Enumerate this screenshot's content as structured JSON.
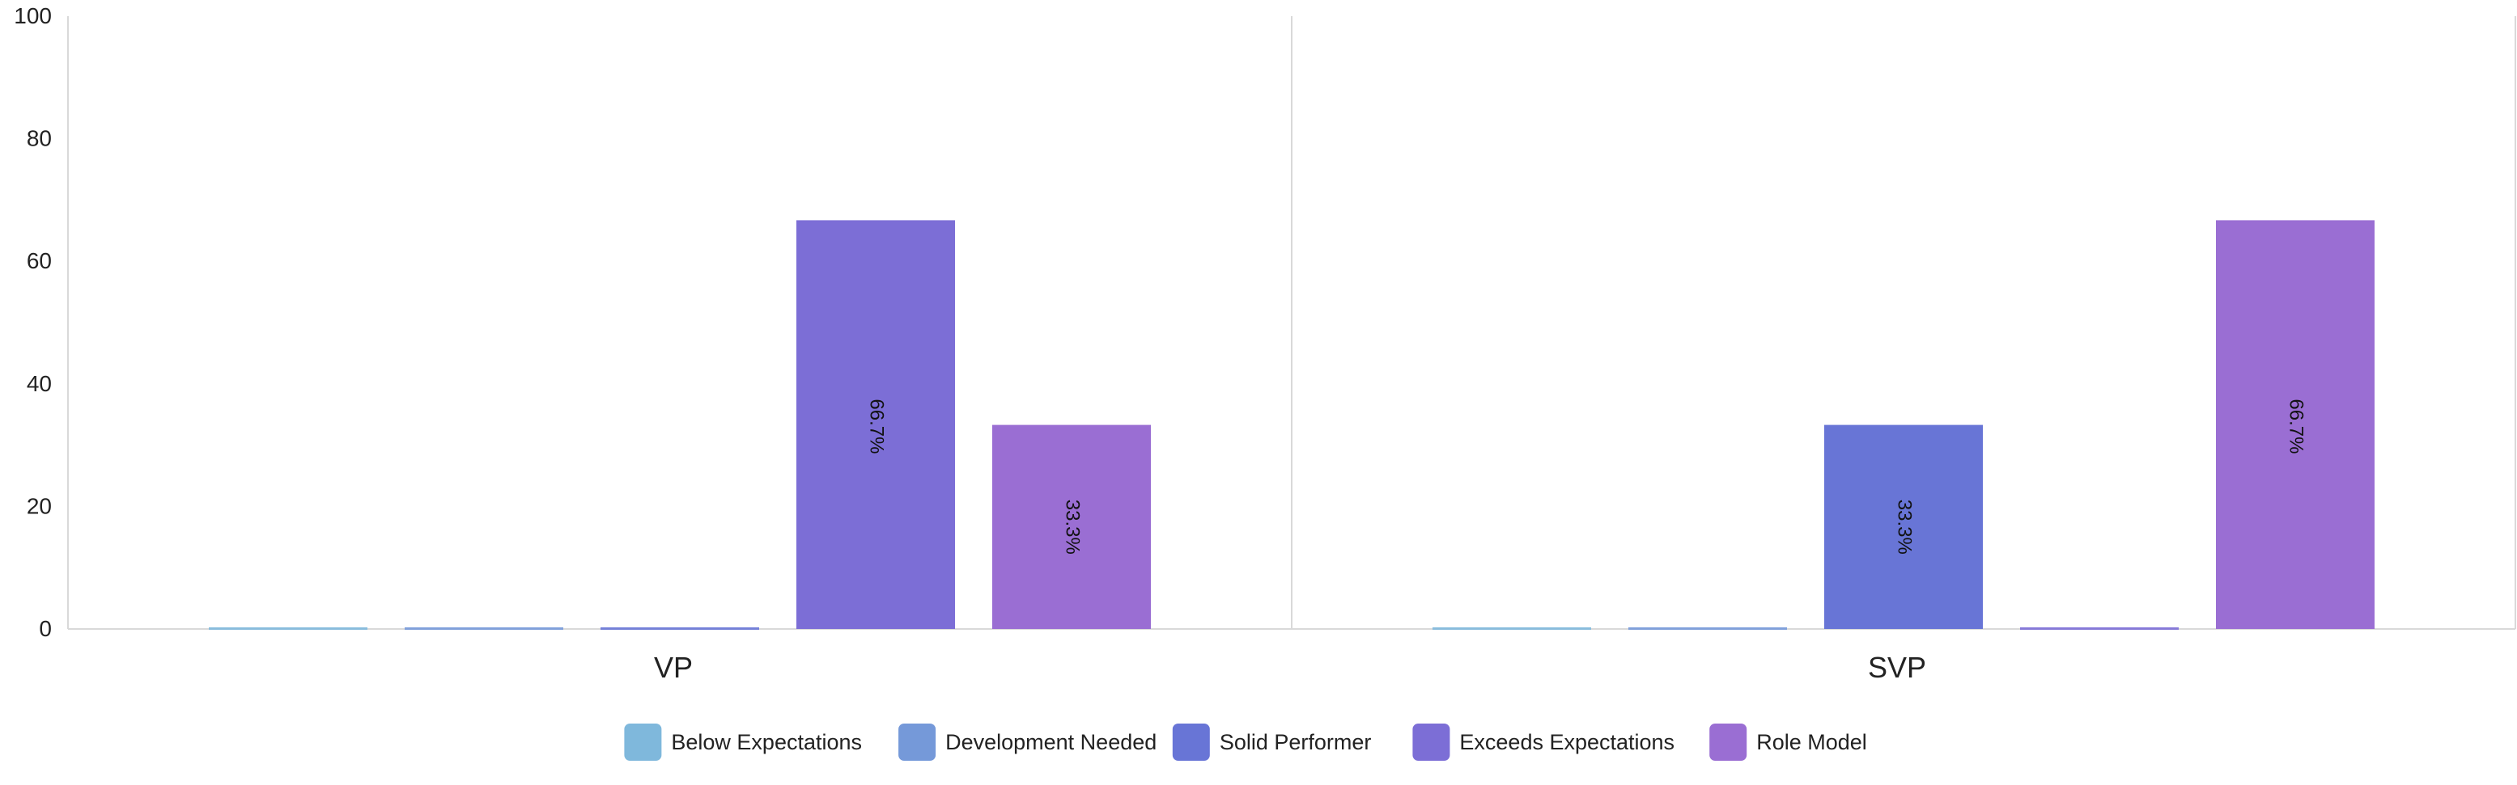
{
  "chart_data": {
    "type": "bar",
    "categories": [
      "VP",
      "SVP"
    ],
    "series": [
      {
        "name": "Below Expectations",
        "color": "#7FB8DC",
        "values": [
          0,
          0
        ],
        "labels": [
          "",
          ""
        ]
      },
      {
        "name": "Development Needed",
        "color": "#7599D9",
        "values": [
          0,
          0
        ],
        "labels": [
          "",
          ""
        ]
      },
      {
        "name": "Solid Performer",
        "color": "#6875D6",
        "values": [
          0,
          33.3
        ],
        "labels": [
          "",
          "33.3%"
        ]
      },
      {
        "name": "Exceeds Expectations",
        "color": "#7C6ED6",
        "values": [
          66.7,
          0
        ],
        "labels": [
          "66.7%",
          ""
        ]
      },
      {
        "name": "Role Model",
        "color": "#9A6ED3",
        "values": [
          33.3,
          66.7
        ],
        "labels": [
          "33.3%",
          "66.7%"
        ]
      }
    ],
    "ylim": [
      0,
      100
    ],
    "yticks": [
      "0",
      "20",
      "40",
      "60",
      "80",
      "100"
    ],
    "title": "",
    "xlabel": "",
    "ylabel": "",
    "grid": false,
    "legend_position": "bottom"
  }
}
